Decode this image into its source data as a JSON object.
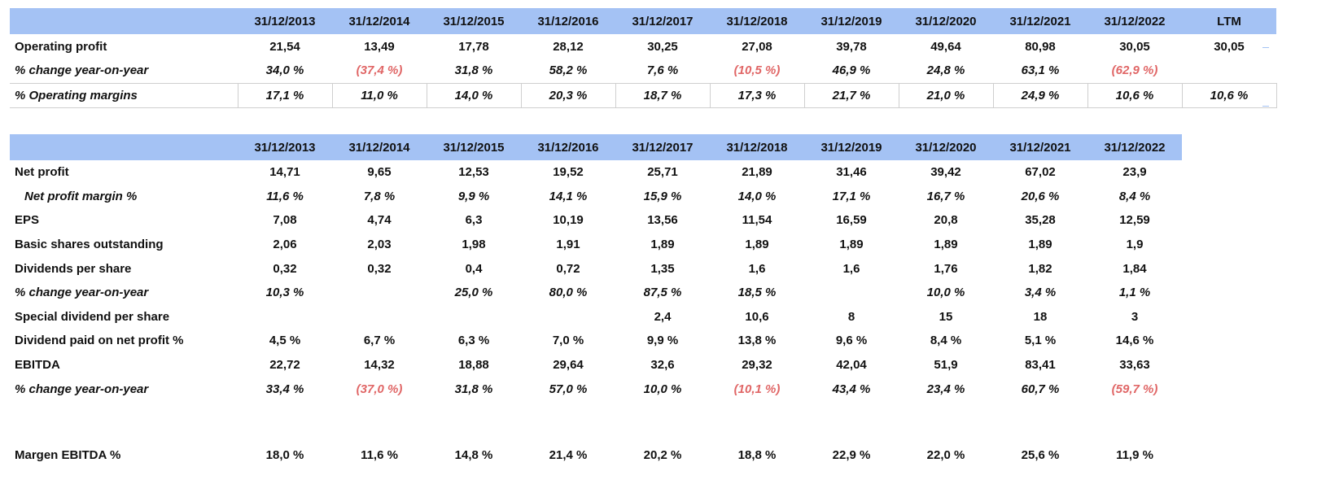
{
  "table1": {
    "headers": [
      "31/12/2013",
      "31/12/2014",
      "31/12/2015",
      "31/12/2016",
      "31/12/2017",
      "31/12/2018",
      "31/12/2019",
      "31/12/2020",
      "31/12/2021",
      "31/12/2022",
      "LTM"
    ],
    "rows": [
      {
        "label": "Operating profit",
        "style": "bold",
        "values": [
          "21,54",
          "13,49",
          "17,78",
          "28,12",
          "30,25",
          "27,08",
          "39,78",
          "49,64",
          "80,98",
          "30,05",
          "30,05"
        ]
      },
      {
        "label": "% change year-on-year",
        "style": "italic",
        "values": [
          "34,0 %",
          "(37,4 %)",
          "31,8 %",
          "58,2 %",
          "7,6 %",
          "(10,5 %)",
          "46,9 %",
          "24,8 %",
          "63,1 %",
          "(62,9 %)",
          ""
        ]
      },
      {
        "label": "% Operating margins",
        "style": "italic",
        "values": [
          "17,1 %",
          "11,0 %",
          "14,0 %",
          "20,3 %",
          "18,7 %",
          "17,3 %",
          "21,7 %",
          "21,0 %",
          "24,9 %",
          "10,6 %",
          "10,6 %"
        ]
      }
    ]
  },
  "table2": {
    "headers": [
      "31/12/2013",
      "31/12/2014",
      "31/12/2015",
      "31/12/2016",
      "31/12/2017",
      "31/12/2018",
      "31/12/2019",
      "31/12/2020",
      "31/12/2021",
      "31/12/2022"
    ],
    "rows": [
      {
        "label": "Net profit",
        "style": "bold",
        "values": [
          "14,71",
          "9,65",
          "12,53",
          "19,52",
          "25,71",
          "21,89",
          "31,46",
          "39,42",
          "67,02",
          "23,9"
        ]
      },
      {
        "label": "Net profit margin %",
        "style": "italic-indent",
        "values": [
          "11,6 %",
          "7,8 %",
          "9,9 %",
          "14,1 %",
          "15,9 %",
          "14,0 %",
          "17,1 %",
          "16,7 %",
          "20,6 %",
          "8,4 %"
        ]
      },
      {
        "label": "EPS",
        "style": "bold",
        "values": [
          "7,08",
          "4,74",
          "6,3",
          "10,19",
          "13,56",
          "11,54",
          "16,59",
          "20,8",
          "35,28",
          "12,59"
        ]
      },
      {
        "label": "Basic shares outstanding",
        "style": "bold",
        "values": [
          "2,06",
          "2,03",
          "1,98",
          "1,91",
          "1,89",
          "1,89",
          "1,89",
          "1,89",
          "1,89",
          "1,9"
        ]
      },
      {
        "label": "Dividends per share",
        "style": "bold",
        "values": [
          "0,32",
          "0,32",
          "0,4",
          "0,72",
          "1,35",
          "1,6",
          "1,6",
          "1,76",
          "1,82",
          "1,84"
        ]
      },
      {
        "label": "% change year-on-year",
        "style": "italic",
        "values": [
          "10,3 %",
          "",
          "25,0 %",
          "80,0 %",
          "87,5 %",
          "18,5 %",
          "",
          "10,0 %",
          "3,4 %",
          "1,1 %"
        ]
      },
      {
        "label": "Special dividend per share",
        "style": "bold",
        "values": [
          "",
          "",
          "",
          "",
          "2,4",
          "10,6",
          "8",
          "15",
          "18",
          "3"
        ]
      },
      {
        "label": "Dividend paid on net profit %",
        "style": "bold",
        "values": [
          "4,5 %",
          "6,7 %",
          "6,3 %",
          "7,0 %",
          "9,9 %",
          "13,8 %",
          "9,6 %",
          "8,4 %",
          "5,1 %",
          "14,6 %"
        ]
      },
      {
        "label": "EBITDA",
        "style": "bold",
        "values": [
          "22,72",
          "14,32",
          "18,88",
          "29,64",
          "32,6",
          "29,32",
          "42,04",
          "51,9",
          "83,41",
          "33,63"
        ]
      },
      {
        "label": "% change year-on-year",
        "style": "italic",
        "values": [
          "33,4 %",
          "(37,0 %)",
          "31,8 %",
          "57,0 %",
          "10,0 %",
          "(10,1 %)",
          "43,4 %",
          "23,4 %",
          "60,7 %",
          "(59,7 %)"
        ]
      },
      {
        "label": "Margen EBITDA %",
        "style": "bold",
        "spacer_before": true,
        "values": [
          "18,0 %",
          "11,6 %",
          "14,8 %",
          "21,4 %",
          "20,2 %",
          "18,8 %",
          "22,9 %",
          "22,0 %",
          "25,6 %",
          "11,9 %"
        ]
      }
    ]
  },
  "colors": {
    "header_bg": "#a4c2f4",
    "negative": "#e06666",
    "border": "#cfcfcf"
  }
}
